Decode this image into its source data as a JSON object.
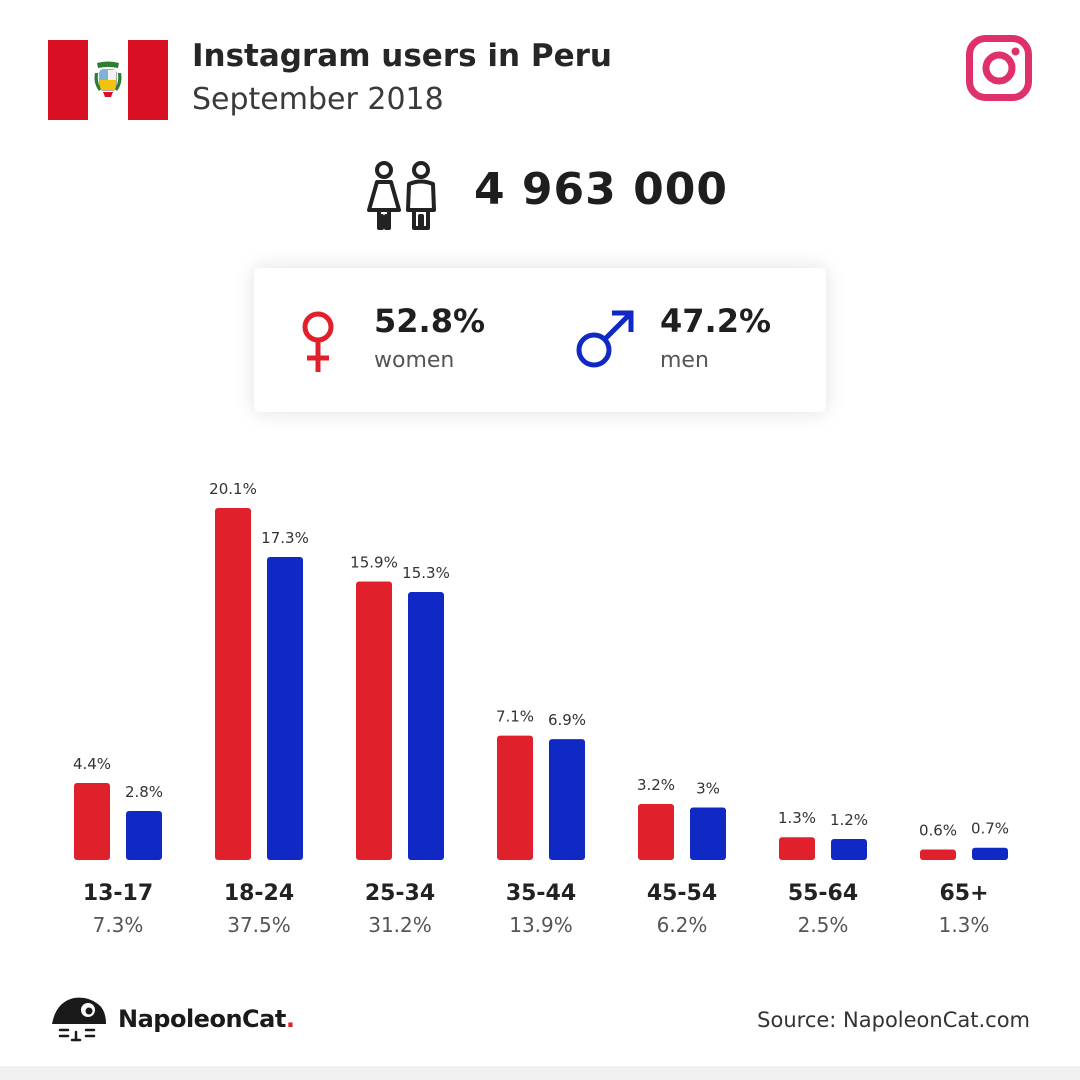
{
  "header": {
    "title": "Instagram users in Peru",
    "subtitle": "September 2018"
  },
  "total": {
    "value": "4 963 000"
  },
  "gender": {
    "women": {
      "pct": "52.8%",
      "label": "women"
    },
    "men": {
      "pct": "47.2%",
      "label": "men"
    }
  },
  "colors": {
    "women": "#e0202a",
    "men": "#1129c4",
    "flag_red": "#d91023",
    "instagram": "#e0306a"
  },
  "icons": {
    "flag": "peru-flag-icon",
    "instagram": "instagram-icon",
    "users": "users-icon",
    "female": "female-symbol-icon",
    "male": "male-symbol-icon",
    "brand": "napoleoncat-logo-icon"
  },
  "chart_data": {
    "type": "bar",
    "categories": [
      "13-17",
      "18-24",
      "25-34",
      "35-44",
      "45-54",
      "55-64",
      "65+"
    ],
    "category_totals": [
      "7.3%",
      "37.5%",
      "31.2%",
      "13.9%",
      "6.2%",
      "2.5%",
      "1.3%"
    ],
    "series": [
      {
        "values": [
          4.4,
          20.1,
          15.9,
          7.1,
          3.2,
          1.3,
          0.6
        ],
        "labels": [
          "4.4%",
          "20.1%",
          "15.9%",
          "7.1%",
          "3.2%",
          "1.3%",
          "0.6%"
        ]
      },
      {
        "values": [
          2.8,
          17.3,
          15.3,
          6.9,
          3,
          1.2,
          0.7
        ],
        "labels": [
          "2.8%",
          "17.3%",
          "15.3%",
          "6.9%",
          "3%",
          "1.2%",
          "0.7%"
        ]
      }
    ],
    "ylim": [
      0,
      20.1
    ],
    "grid": false,
    "legend": "none"
  },
  "footer": {
    "brand": "NapoleonCat",
    "brand_dot": ".",
    "source": "Source: NapoleonCat.com"
  }
}
